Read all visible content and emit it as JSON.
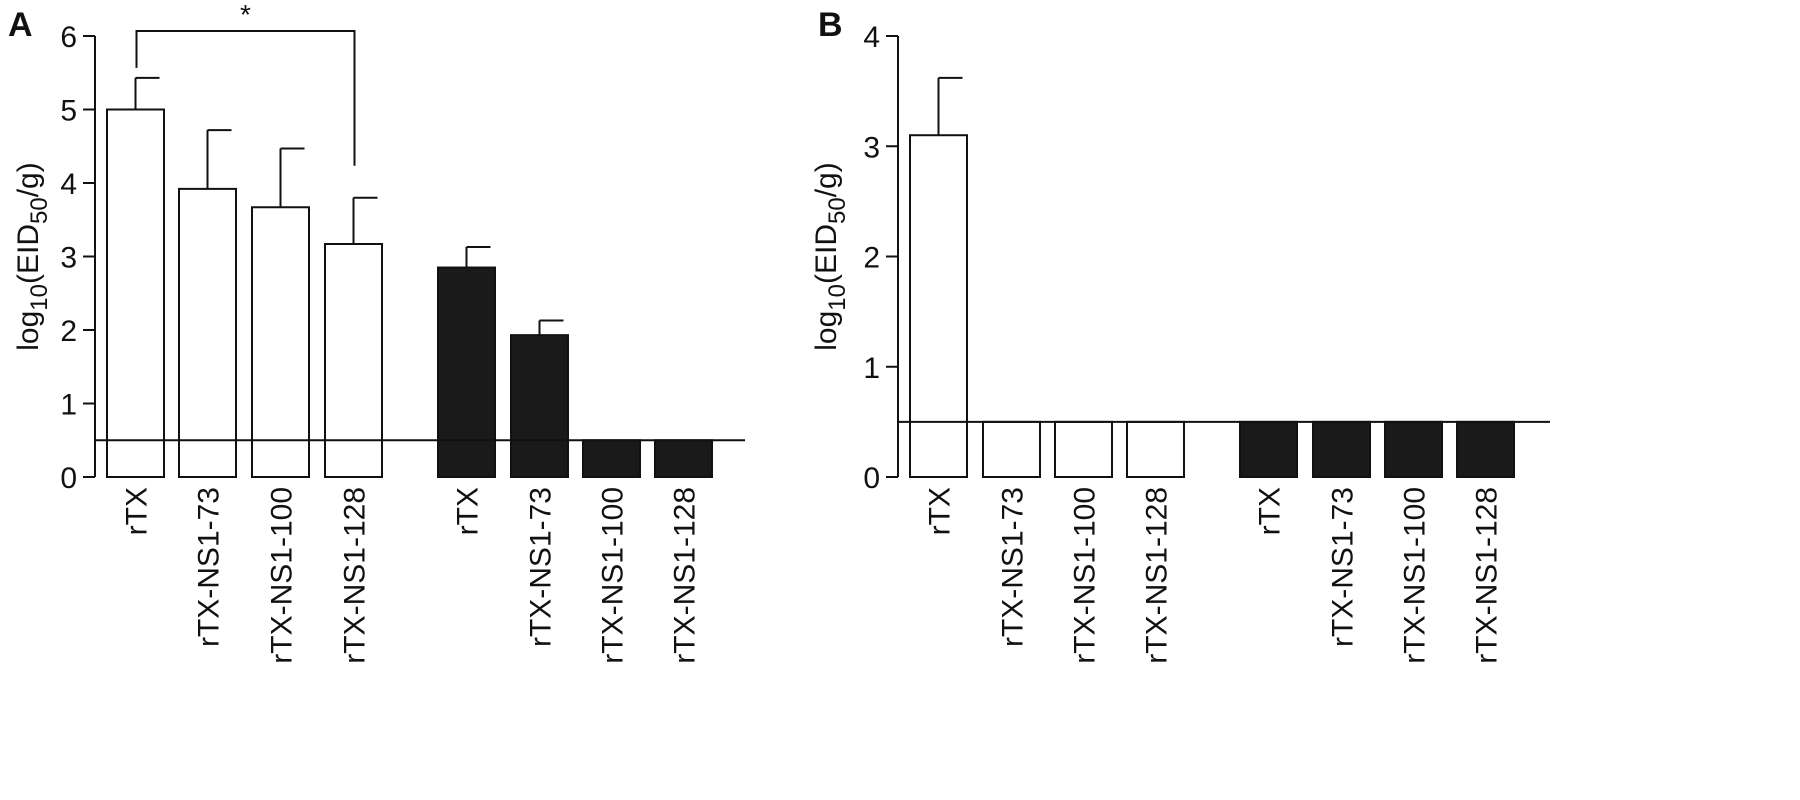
{
  "chart_data": [
    {
      "type": "bar",
      "panel_label": "A",
      "ylabel": {
        "pre": "log",
        "sub1": "10",
        "mid": "(EID",
        "sub2": "50",
        "post": "/g)"
      },
      "ylim": [
        0,
        6
      ],
      "yticks": [
        "0",
        "1",
        "2",
        "3",
        "4",
        "5",
        "6"
      ],
      "detection_limit": 0.5,
      "significance_label": "*",
      "bars": [
        {
          "category": "rTX",
          "value": 5.0,
          "error": 0.43,
          "fill": "#ffffff"
        },
        {
          "category": "rTX-NS1-73",
          "value": 3.92,
          "error": 0.8,
          "fill": "#ffffff"
        },
        {
          "category": "rTX-NS1-100",
          "value": 3.67,
          "error": 0.8,
          "fill": "#ffffff"
        },
        {
          "category": "rTX-NS1-128",
          "value": 3.17,
          "error": 0.63,
          "fill": "#ffffff"
        },
        {
          "category": "rTX",
          "value": 2.85,
          "error": 0.28,
          "fill": "#1a1a1a"
        },
        {
          "category": "rTX-NS1-73",
          "value": 1.93,
          "error": 0.2,
          "fill": "#1a1a1a"
        },
        {
          "category": "rTX-NS1-100",
          "value": 0.5,
          "error": 0,
          "fill": "#1a1a1a"
        },
        {
          "category": "rTX-NS1-128",
          "value": 0.5,
          "error": 0,
          "fill": "#1a1a1a"
        }
      ],
      "significance_pair": [
        0,
        3
      ]
    },
    {
      "type": "bar",
      "panel_label": "B",
      "ylabel": {
        "pre": "log",
        "sub1": "10",
        "mid": "(EID",
        "sub2": "50",
        "post": "/g)"
      },
      "ylim": [
        0,
        4
      ],
      "yticks": [
        "0",
        "1",
        "2",
        "3",
        "4"
      ],
      "detection_limit": 0.5,
      "bars": [
        {
          "category": "rTX",
          "value": 3.1,
          "error": 0.52,
          "fill": "#ffffff"
        },
        {
          "category": "rTX-NS1-73",
          "value": 0.5,
          "error": 0,
          "fill": "#ffffff"
        },
        {
          "category": "rTX-NS1-100",
          "value": 0.5,
          "error": 0,
          "fill": "#ffffff"
        },
        {
          "category": "rTX-NS1-128",
          "value": 0.5,
          "error": 0,
          "fill": "#ffffff"
        },
        {
          "category": "rTX",
          "value": 0.5,
          "error": 0,
          "fill": "#1a1a1a"
        },
        {
          "category": "rTX-NS1-73",
          "value": 0.5,
          "error": 0,
          "fill": "#1a1a1a"
        },
        {
          "category": "rTX-NS1-100",
          "value": 0.5,
          "error": 0,
          "fill": "#1a1a1a"
        },
        {
          "category": "rTX-NS1-128",
          "value": 0.5,
          "error": 0,
          "fill": "#1a1a1a"
        }
      ]
    }
  ]
}
